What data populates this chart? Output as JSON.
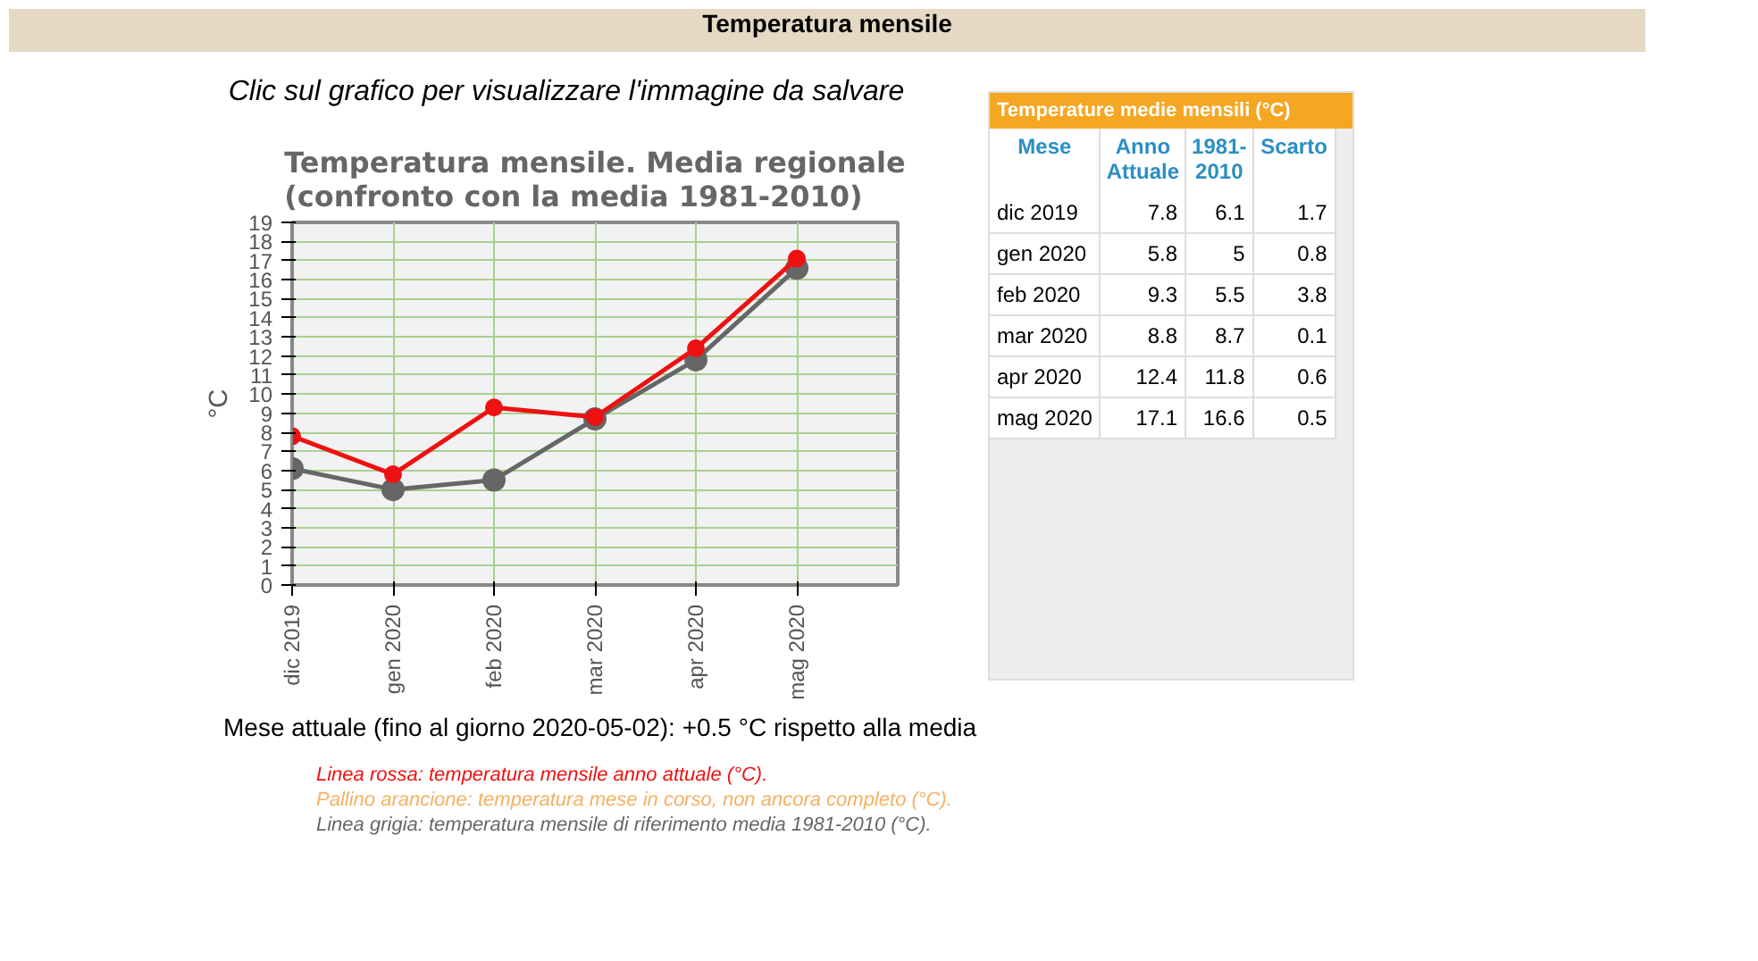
{
  "chart_data": {
    "type": "line",
    "title": "Temperatura mensile. Media regionale (confronto con la media 1981-2010)",
    "subtitle": "Clic sul grafico per visualizzare l'immagine da salvare",
    "ylabel": "°C",
    "categories": [
      "dic 2019",
      "gen 2020",
      "feb 2020",
      "mar 2020",
      "apr 2020",
      "mag 2020"
    ],
    "series": [
      {
        "color": "#666666",
        "values": [
          6.1,
          5,
          5.5,
          8.7,
          11.8,
          16.6
        ]
      },
      {
        "color": "#ee1111",
        "values": [
          7.8,
          5.8,
          9.3,
          8.8,
          12.4,
          17.1
        ]
      }
    ],
    "ylim": [
      0,
      19
    ],
    "yticks": [
      0,
      1,
      2,
      3,
      4,
      5,
      6,
      7,
      8,
      9,
      10,
      11,
      12,
      13,
      14,
      15,
      16,
      17,
      18,
      19
    ],
    "grid": true,
    "marker": "circle",
    "line_style": "solid",
    "annotations": [
      "Temperatura mensile",
      "Temperature medie mensili (°C)",
      "Mese",
      "Anno Attuale",
      "1981-2010",
      "Scarto",
      "7.8",
      "6.1",
      "1.7",
      "5.8",
      "5",
      "0.8",
      "9.3",
      "5.5",
      "3.8",
      "8.8",
      "8.7",
      "0.1",
      "12.4",
      "11.8",
      "0.6",
      "17.1",
      "16.6",
      "0.5",
      "Mese attuale (fino al giorno 2020-05-02): +0.5 °C rispetto alla media",
      "Linea rossa: temperatura mensile anno attuale (°C).",
      "Pallino arancione: temperatura mese in corso, non ancora completo (°C).",
      "Linea grigia: temperatura mensile di riferimento media 1981-2010 (°C)."
    ]
  }
}
